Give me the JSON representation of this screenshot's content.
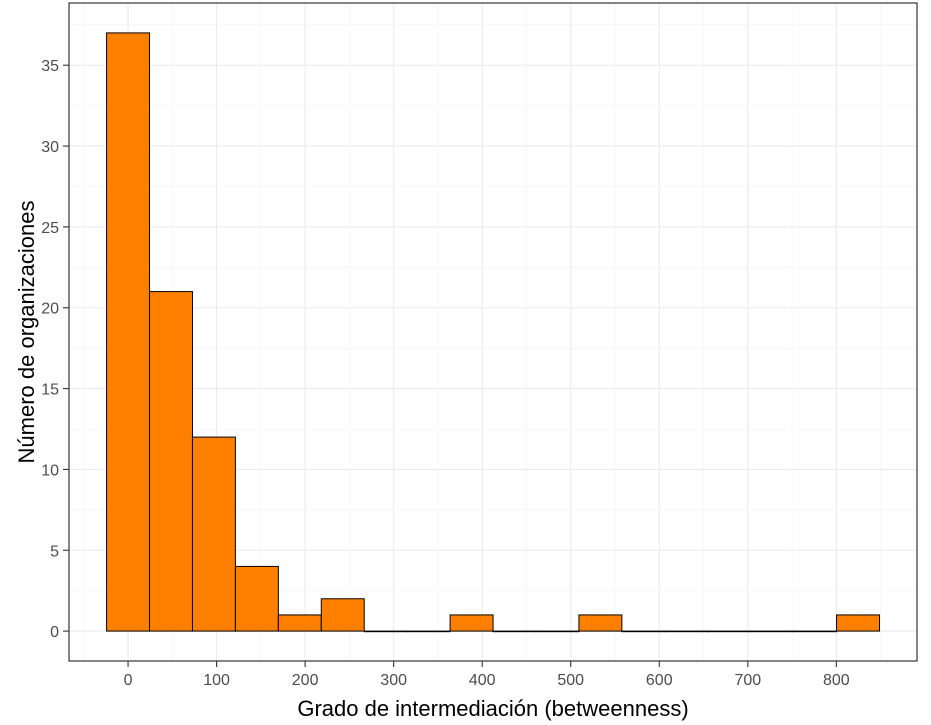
{
  "chart_data": {
    "type": "bar",
    "subtype": "histogram",
    "title": "",
    "xlabel": "Grado de intermediación (betweenness)",
    "ylabel": "Número de organizaciones",
    "bin_width": 48.5,
    "bins": [
      {
        "x0": -24.25,
        "x1": 24.25,
        "count": 37
      },
      {
        "x0": 24.25,
        "x1": 72.75,
        "count": 21
      },
      {
        "x0": 72.75,
        "x1": 121.25,
        "count": 12
      },
      {
        "x0": 121.25,
        "x1": 169.75,
        "count": 4
      },
      {
        "x0": 169.75,
        "x1": 218.25,
        "count": 1
      },
      {
        "x0": 218.25,
        "x1": 266.75,
        "count": 2
      },
      {
        "x0": 266.75,
        "x1": 315.25,
        "count": 0
      },
      {
        "x0": 315.25,
        "x1": 363.75,
        "count": 0
      },
      {
        "x0": 363.75,
        "x1": 412.25,
        "count": 1
      },
      {
        "x0": 412.25,
        "x1": 460.75,
        "count": 0
      },
      {
        "x0": 460.75,
        "x1": 509.25,
        "count": 0
      },
      {
        "x0": 509.25,
        "x1": 557.75,
        "count": 1
      },
      {
        "x0": 557.75,
        "x1": 606.25,
        "count": 0
      },
      {
        "x0": 606.25,
        "x1": 654.75,
        "count": 0
      },
      {
        "x0": 654.75,
        "x1": 703.25,
        "count": 0
      },
      {
        "x0": 703.25,
        "x1": 751.75,
        "count": 0
      },
      {
        "x0": 751.75,
        "x1": 800.25,
        "count": 0
      },
      {
        "x0": 800.25,
        "x1": 848.75,
        "count": 1
      }
    ],
    "xlim": [
      -66.7,
      891.1
    ],
    "ylim": [
      -1.85,
      38.85
    ],
    "x_ticks": [
      0,
      100,
      200,
      300,
      400,
      500,
      600,
      700,
      800
    ],
    "x_tick_labels": [
      "0",
      "100",
      "200",
      "300",
      "400",
      "500",
      "600",
      "700",
      "800"
    ],
    "y_ticks": [
      0,
      5,
      10,
      15,
      20,
      25,
      30,
      35
    ],
    "y_tick_labels": [
      "0",
      "5",
      "10",
      "15",
      "20",
      "25",
      "30",
      "35"
    ],
    "x_minor_ticks": [
      -50,
      50,
      150,
      250,
      350,
      450,
      550,
      650,
      750,
      850
    ],
    "y_minor_ticks": [
      2.5,
      7.5,
      12.5,
      17.5,
      22.5,
      27.5,
      32.5,
      37.5
    ],
    "grid": true,
    "legend": "none",
    "bar_color": "#ff8000",
    "bar_outline": "#000000"
  }
}
